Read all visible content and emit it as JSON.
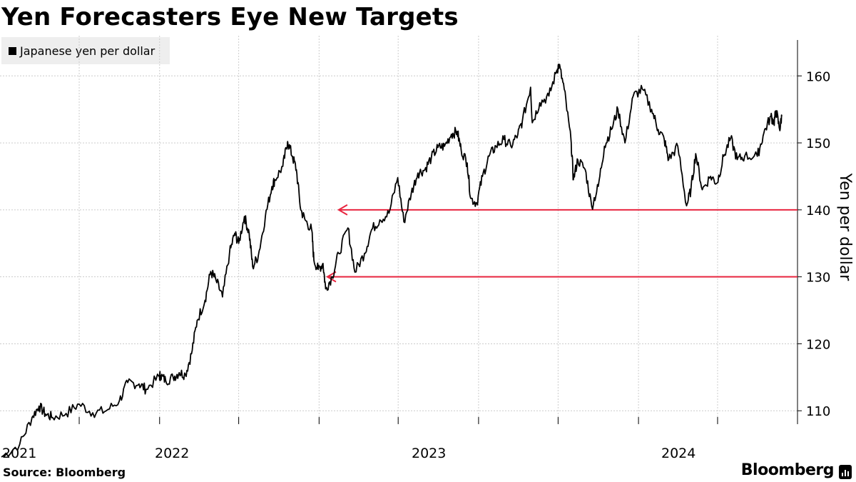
{
  "title": "Yen Forecasters Eye New Targets",
  "source": "Source: Bloomberg",
  "brand": "Bloomberg",
  "brand_icon": "bar-chart-icon",
  "colors": {
    "line": "#000000",
    "target": "#e8253f",
    "grid": "#cccccc",
    "legend_bg": "#eeeeee"
  },
  "chart_data": {
    "type": "line",
    "title": "Yen Forecasters Eye New Targets",
    "ylabel": "Yen per dollar",
    "xlabel": "",
    "ylim": [
      108,
      166
    ],
    "yticks": [
      110,
      120,
      130,
      140,
      150,
      160
    ],
    "x_tick_labels": [
      "2021",
      "2022",
      "2023",
      "2024"
    ],
    "grid": true,
    "legend": {
      "position": "top-left",
      "entries": [
        "Japanese yen per dollar"
      ]
    },
    "series": [
      {
        "name": "Japanese yen per dollar",
        "points": [
          [
            "2021-01-04",
            103.1
          ],
          [
            "2021-02-15",
            105.0
          ],
          [
            "2021-03-15",
            109.0
          ],
          [
            "2021-03-31",
            110.7
          ],
          [
            "2021-04-15",
            109.5
          ],
          [
            "2021-05-01",
            109.0
          ],
          [
            "2021-06-01",
            109.6
          ],
          [
            "2021-07-01",
            111.0
          ],
          [
            "2021-08-01",
            109.7
          ],
          [
            "2021-09-01",
            110.0
          ],
          [
            "2021-10-01",
            111.5
          ],
          [
            "2021-10-20",
            114.2
          ],
          [
            "2021-11-15",
            114.0
          ],
          [
            "2021-12-01",
            113.2
          ],
          [
            "2021-12-31",
            115.1
          ],
          [
            "2022-01-03",
            115.3
          ],
          [
            "2022-01-15",
            114.5
          ],
          [
            "2022-02-01",
            115.0
          ],
          [
            "2022-02-15",
            115.7
          ],
          [
            "2022-03-01",
            115.4
          ],
          [
            "2022-03-15",
            118.5
          ],
          [
            "2022-03-28",
            123.5
          ],
          [
            "2022-04-15",
            126.5
          ],
          [
            "2022-04-28",
            130.8
          ],
          [
            "2022-05-10",
            129.5
          ],
          [
            "2022-05-25",
            127.0
          ],
          [
            "2022-06-10",
            133.5
          ],
          [
            "2022-06-22",
            136.5
          ],
          [
            "2022-07-01",
            135.0
          ],
          [
            "2022-07-14",
            139.0
          ],
          [
            "2022-07-25",
            136.5
          ],
          [
            "2022-08-02",
            131.5
          ],
          [
            "2022-08-15",
            133.2
          ],
          [
            "2022-08-31",
            139.0
          ],
          [
            "2022-09-15",
            143.5
          ],
          [
            "2022-09-22",
            144.5
          ],
          [
            "2022-10-10",
            146.5
          ],
          [
            "2022-10-21",
            150.2
          ],
          [
            "2022-11-01",
            148.0
          ],
          [
            "2022-11-10",
            146.0
          ],
          [
            "2022-11-20",
            140.0
          ],
          [
            "2022-11-30",
            138.5
          ],
          [
            "2022-12-15",
            137.0
          ],
          [
            "2022-12-20",
            132.5
          ],
          [
            "2022-12-30",
            131.1
          ],
          [
            "2023-01-10",
            132.0
          ],
          [
            "2023-01-16",
            128.2
          ],
          [
            "2023-01-31",
            130.0
          ],
          [
            "2023-02-15",
            133.5
          ],
          [
            "2023-03-08",
            137.3
          ],
          [
            "2023-03-24",
            130.7
          ],
          [
            "2023-04-15",
            133.5
          ],
          [
            "2023-05-01",
            137.0
          ],
          [
            "2023-05-20",
            138.5
          ],
          [
            "2023-06-10",
            139.5
          ],
          [
            "2023-06-30",
            144.8
          ],
          [
            "2023-07-14",
            138.2
          ],
          [
            "2023-07-31",
            142.5
          ],
          [
            "2023-08-15",
            145.5
          ],
          [
            "2023-08-31",
            146.0
          ],
          [
            "2023-09-15",
            147.8
          ],
          [
            "2023-09-30",
            149.3
          ],
          [
            "2023-10-15",
            149.5
          ],
          [
            "2023-10-31",
            151.3
          ],
          [
            "2023-11-13",
            151.7
          ],
          [
            "2023-11-22",
            149.0
          ],
          [
            "2023-12-06",
            147.0
          ],
          [
            "2023-12-14",
            141.7
          ],
          [
            "2023-12-28",
            141.0
          ],
          [
            "2024-01-10",
            145.0
          ],
          [
            "2024-01-25",
            148.0
          ],
          [
            "2024-02-10",
            149.5
          ],
          [
            "2024-02-28",
            150.5
          ],
          [
            "2024-03-15",
            149.5
          ],
          [
            "2024-03-31",
            151.3
          ],
          [
            "2024-04-10",
            153.2
          ],
          [
            "2024-04-29",
            158.3
          ],
          [
            "2024-05-03",
            153.0
          ],
          [
            "2024-05-20",
            156.0
          ],
          [
            "2024-06-10",
            157.0
          ],
          [
            "2024-06-28",
            160.8
          ],
          [
            "2024-07-03",
            161.7
          ],
          [
            "2024-07-15",
            158.0
          ],
          [
            "2024-07-31",
            150.0
          ],
          [
            "2024-08-05",
            144.5
          ],
          [
            "2024-08-15",
            147.5
          ],
          [
            "2024-09-01",
            146.0
          ],
          [
            "2024-09-16",
            140.5
          ],
          [
            "2024-10-01",
            143.5
          ],
          [
            "2024-10-15",
            149.5
          ],
          [
            "2024-10-31",
            152.0
          ],
          [
            "2024-11-15",
            155.0
          ],
          [
            "2024-12-01",
            150.0
          ],
          [
            "2024-12-20",
            157.0
          ],
          [
            "2025-01-10",
            158.0
          ],
          [
            "2025-01-31",
            155.0
          ],
          [
            "2025-02-15",
            152.0
          ],
          [
            "2025-03-01",
            150.5
          ],
          [
            "2025-03-11",
            147.5
          ],
          [
            "2025-04-01",
            149.5
          ],
          [
            "2025-04-21",
            140.6
          ],
          [
            "2025-05-01",
            143.0
          ],
          [
            "2025-05-12",
            148.4
          ],
          [
            "2025-05-27",
            143.0
          ],
          [
            "2025-06-15",
            145.0
          ],
          [
            "2025-06-30",
            144.0
          ],
          [
            "2025-07-15",
            148.0
          ],
          [
            "2025-07-31",
            150.7
          ],
          [
            "2025-08-15",
            147.5
          ],
          [
            "2025-09-01",
            148.0
          ],
          [
            "2025-09-30",
            148.0
          ],
          [
            "2025-10-15",
            151.5
          ],
          [
            "2025-10-31",
            154.0
          ],
          [
            "2025-11-07",
            153.0
          ],
          [
            "2025-11-12",
            154.8
          ],
          [
            "2025-11-20",
            152.0
          ],
          [
            "2025-11-25",
            154.0
          ]
        ]
      }
    ],
    "annotations": [
      {
        "type": "target-arrow",
        "y": 140,
        "x_start": "2023-02-15"
      },
      {
        "type": "target-arrow",
        "y": 130,
        "x_start": "2023-01-20"
      }
    ]
  }
}
